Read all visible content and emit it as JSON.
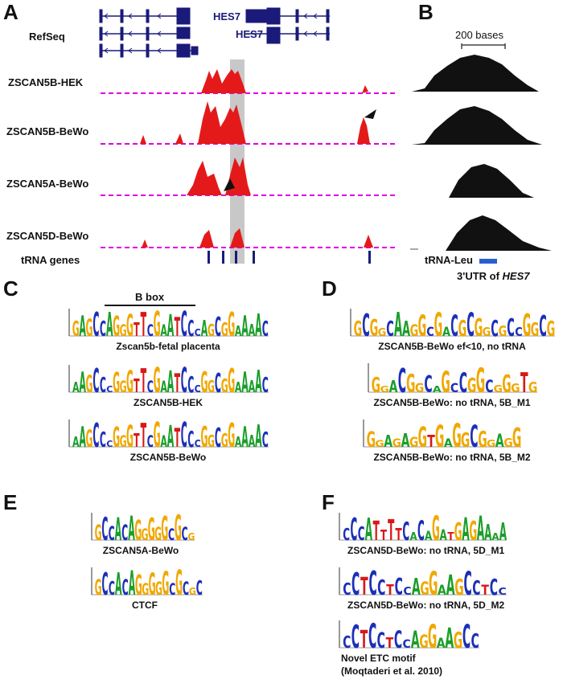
{
  "figure": {
    "panels": {
      "A": "A",
      "B": "B",
      "C": "C",
      "D": "D",
      "E": "E",
      "F": "F"
    }
  },
  "panel_a": {
    "refseq_label": "RefSeq",
    "gene_label_1": "HES7",
    "gene_label_2": "HES7",
    "tracks": [
      "ZSCAN5B-HEK",
      "ZSCAN5B-BeWo",
      "ZSCAN5A-BeWo",
      "ZSCAN5D-BeWo"
    ],
    "trna_label": "tRNA genes"
  },
  "panel_b": {
    "scale_label": "200 bases",
    "trna_leu_label": "tRNA-Leu",
    "utr_label": "3'UTR of ",
    "utr_gene": "HES7"
  },
  "panel_c": {
    "bbox_label": "B box",
    "logos": [
      "Zscan5b-fetal placenta",
      "ZSCAN5B-HEK",
      "ZSCAN5B-BeWo"
    ]
  },
  "panel_d": {
    "logos": [
      "ZSCAN5B-BeWo ef<10, no tRNA",
      "ZSCAN5B-BeWo: no tRNA, 5B_M1",
      "ZSCAN5B-BeWo: no tRNA, 5B_M2"
    ]
  },
  "panel_e": {
    "logos": [
      "ZSCAN5A-BeWo",
      "CTCF"
    ]
  },
  "panel_f": {
    "logos": [
      "ZSCAN5D-BeWo: no tRNA, 5D_M1",
      "ZSCAN5D-BeWo: no tRNA, 5D_M2"
    ],
    "novel_line1": "Novel ETC motif",
    "novel_line2": "(Moqtaderi et al. 2010)"
  },
  "logo_sequences": {
    "c1": "GAGCCAGGGTTCGAATCCCAGCGGAAAAC",
    "c2": "AAGCCCGGGTTCGAATCCCGGCGGAAAAC",
    "c3": "AAGCCCGGGTTCGAATCCCGGCGGAAAAC",
    "d1": "GCGGCAAGGCGACGCGGCGCCGGCG",
    "d2": "GGACGGCAGCCGGCGGGTG",
    "d3": "GGAGAGGTGAGGCGGAGG",
    "e1": "GCCACAGGGGGCGCG",
    "e2": "GCCACAGGGGGCGCGC",
    "f1": "CCCATTTTCACAGATGAGAAAA",
    "f2": "CCTCCTCCAGGAAGCCTCC",
    "f3": "CCTCCTCCAGGAAGCC"
  },
  "colors": {
    "A": "#1a9e2a",
    "C": "#1c2fb8",
    "G": "#f0a800",
    "T": "#d81818",
    "peak": "#e41a1a",
    "baseline": "#e000e0",
    "gene": "#1a1a7a",
    "shade": "#c8c8c8"
  }
}
